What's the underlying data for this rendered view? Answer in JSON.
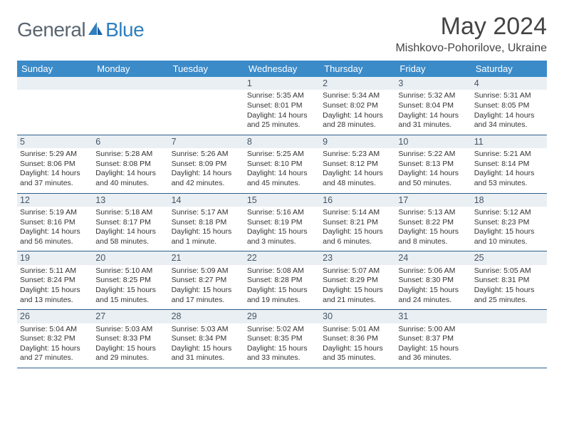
{
  "brand": {
    "text1": "General",
    "text2": "Blue",
    "color1": "#5a6570",
    "color2": "#2f7fbf",
    "icon_color": "#2f7fbf"
  },
  "title": "May 2024",
  "location": "Mishkovo-Pohorilove, Ukraine",
  "colors": {
    "header_bg": "#3b8bc9",
    "header_text": "#ffffff",
    "row_border": "#2f5e8a",
    "daynum_bg": "#eaeff3",
    "text": "#333333"
  },
  "day_headers": [
    "Sunday",
    "Monday",
    "Tuesday",
    "Wednesday",
    "Thursday",
    "Friday",
    "Saturday"
  ],
  "weeks": [
    [
      {
        "n": "",
        "sr": "",
        "ss": "",
        "dl1": "",
        "dl2": ""
      },
      {
        "n": "",
        "sr": "",
        "ss": "",
        "dl1": "",
        "dl2": ""
      },
      {
        "n": "",
        "sr": "",
        "ss": "",
        "dl1": "",
        "dl2": ""
      },
      {
        "n": "1",
        "sr": "Sunrise: 5:35 AM",
        "ss": "Sunset: 8:01 PM",
        "dl1": "Daylight: 14 hours",
        "dl2": "and 25 minutes."
      },
      {
        "n": "2",
        "sr": "Sunrise: 5:34 AM",
        "ss": "Sunset: 8:02 PM",
        "dl1": "Daylight: 14 hours",
        "dl2": "and 28 minutes."
      },
      {
        "n": "3",
        "sr": "Sunrise: 5:32 AM",
        "ss": "Sunset: 8:04 PM",
        "dl1": "Daylight: 14 hours",
        "dl2": "and 31 minutes."
      },
      {
        "n": "4",
        "sr": "Sunrise: 5:31 AM",
        "ss": "Sunset: 8:05 PM",
        "dl1": "Daylight: 14 hours",
        "dl2": "and 34 minutes."
      }
    ],
    [
      {
        "n": "5",
        "sr": "Sunrise: 5:29 AM",
        "ss": "Sunset: 8:06 PM",
        "dl1": "Daylight: 14 hours",
        "dl2": "and 37 minutes."
      },
      {
        "n": "6",
        "sr": "Sunrise: 5:28 AM",
        "ss": "Sunset: 8:08 PM",
        "dl1": "Daylight: 14 hours",
        "dl2": "and 40 minutes."
      },
      {
        "n": "7",
        "sr": "Sunrise: 5:26 AM",
        "ss": "Sunset: 8:09 PM",
        "dl1": "Daylight: 14 hours",
        "dl2": "and 42 minutes."
      },
      {
        "n": "8",
        "sr": "Sunrise: 5:25 AM",
        "ss": "Sunset: 8:10 PM",
        "dl1": "Daylight: 14 hours",
        "dl2": "and 45 minutes."
      },
      {
        "n": "9",
        "sr": "Sunrise: 5:23 AM",
        "ss": "Sunset: 8:12 PM",
        "dl1": "Daylight: 14 hours",
        "dl2": "and 48 minutes."
      },
      {
        "n": "10",
        "sr": "Sunrise: 5:22 AM",
        "ss": "Sunset: 8:13 PM",
        "dl1": "Daylight: 14 hours",
        "dl2": "and 50 minutes."
      },
      {
        "n": "11",
        "sr": "Sunrise: 5:21 AM",
        "ss": "Sunset: 8:14 PM",
        "dl1": "Daylight: 14 hours",
        "dl2": "and 53 minutes."
      }
    ],
    [
      {
        "n": "12",
        "sr": "Sunrise: 5:19 AM",
        "ss": "Sunset: 8:16 PM",
        "dl1": "Daylight: 14 hours",
        "dl2": "and 56 minutes."
      },
      {
        "n": "13",
        "sr": "Sunrise: 5:18 AM",
        "ss": "Sunset: 8:17 PM",
        "dl1": "Daylight: 14 hours",
        "dl2": "and 58 minutes."
      },
      {
        "n": "14",
        "sr": "Sunrise: 5:17 AM",
        "ss": "Sunset: 8:18 PM",
        "dl1": "Daylight: 15 hours",
        "dl2": "and 1 minute."
      },
      {
        "n": "15",
        "sr": "Sunrise: 5:16 AM",
        "ss": "Sunset: 8:19 PM",
        "dl1": "Daylight: 15 hours",
        "dl2": "and 3 minutes."
      },
      {
        "n": "16",
        "sr": "Sunrise: 5:14 AM",
        "ss": "Sunset: 8:21 PM",
        "dl1": "Daylight: 15 hours",
        "dl2": "and 6 minutes."
      },
      {
        "n": "17",
        "sr": "Sunrise: 5:13 AM",
        "ss": "Sunset: 8:22 PM",
        "dl1": "Daylight: 15 hours",
        "dl2": "and 8 minutes."
      },
      {
        "n": "18",
        "sr": "Sunrise: 5:12 AM",
        "ss": "Sunset: 8:23 PM",
        "dl1": "Daylight: 15 hours",
        "dl2": "and 10 minutes."
      }
    ],
    [
      {
        "n": "19",
        "sr": "Sunrise: 5:11 AM",
        "ss": "Sunset: 8:24 PM",
        "dl1": "Daylight: 15 hours",
        "dl2": "and 13 minutes."
      },
      {
        "n": "20",
        "sr": "Sunrise: 5:10 AM",
        "ss": "Sunset: 8:25 PM",
        "dl1": "Daylight: 15 hours",
        "dl2": "and 15 minutes."
      },
      {
        "n": "21",
        "sr": "Sunrise: 5:09 AM",
        "ss": "Sunset: 8:27 PM",
        "dl1": "Daylight: 15 hours",
        "dl2": "and 17 minutes."
      },
      {
        "n": "22",
        "sr": "Sunrise: 5:08 AM",
        "ss": "Sunset: 8:28 PM",
        "dl1": "Daylight: 15 hours",
        "dl2": "and 19 minutes."
      },
      {
        "n": "23",
        "sr": "Sunrise: 5:07 AM",
        "ss": "Sunset: 8:29 PM",
        "dl1": "Daylight: 15 hours",
        "dl2": "and 21 minutes."
      },
      {
        "n": "24",
        "sr": "Sunrise: 5:06 AM",
        "ss": "Sunset: 8:30 PM",
        "dl1": "Daylight: 15 hours",
        "dl2": "and 24 minutes."
      },
      {
        "n": "25",
        "sr": "Sunrise: 5:05 AM",
        "ss": "Sunset: 8:31 PM",
        "dl1": "Daylight: 15 hours",
        "dl2": "and 25 minutes."
      }
    ],
    [
      {
        "n": "26",
        "sr": "Sunrise: 5:04 AM",
        "ss": "Sunset: 8:32 PM",
        "dl1": "Daylight: 15 hours",
        "dl2": "and 27 minutes."
      },
      {
        "n": "27",
        "sr": "Sunrise: 5:03 AM",
        "ss": "Sunset: 8:33 PM",
        "dl1": "Daylight: 15 hours",
        "dl2": "and 29 minutes."
      },
      {
        "n": "28",
        "sr": "Sunrise: 5:03 AM",
        "ss": "Sunset: 8:34 PM",
        "dl1": "Daylight: 15 hours",
        "dl2": "and 31 minutes."
      },
      {
        "n": "29",
        "sr": "Sunrise: 5:02 AM",
        "ss": "Sunset: 8:35 PM",
        "dl1": "Daylight: 15 hours",
        "dl2": "and 33 minutes."
      },
      {
        "n": "30",
        "sr": "Sunrise: 5:01 AM",
        "ss": "Sunset: 8:36 PM",
        "dl1": "Daylight: 15 hours",
        "dl2": "and 35 minutes."
      },
      {
        "n": "31",
        "sr": "Sunrise: 5:00 AM",
        "ss": "Sunset: 8:37 PM",
        "dl1": "Daylight: 15 hours",
        "dl2": "and 36 minutes."
      },
      {
        "n": "",
        "sr": "",
        "ss": "",
        "dl1": "",
        "dl2": ""
      }
    ]
  ]
}
